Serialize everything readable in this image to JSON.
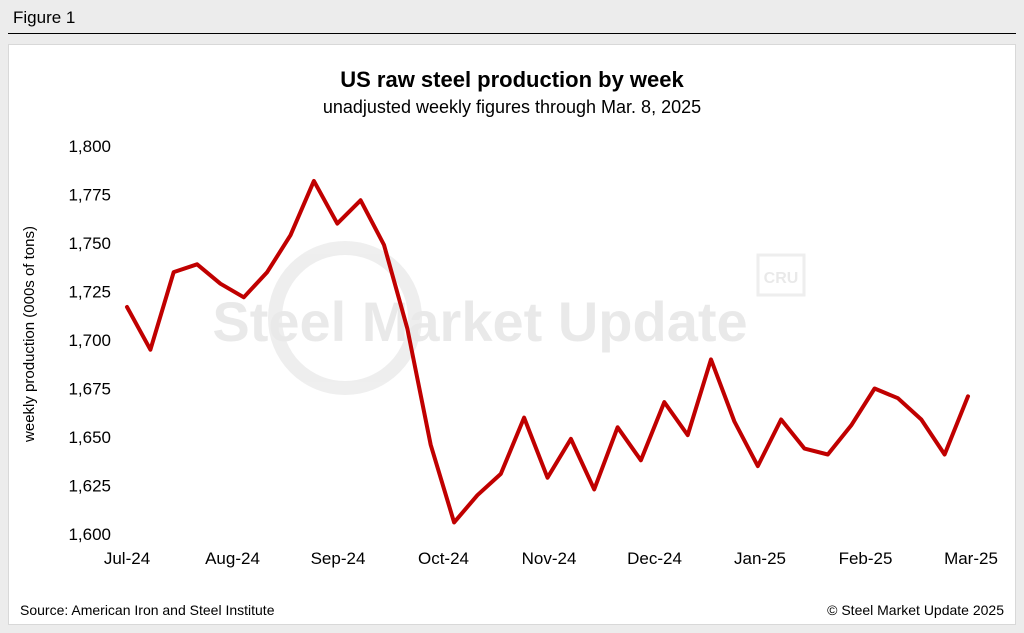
{
  "figure_label": "Figure 1",
  "footer": {
    "source": "Source: American Iron and Steel Institute",
    "copyright": "© Steel Market Update 2025"
  },
  "watermark": {
    "brand": "Steel Market Update",
    "badge": "CRU"
  },
  "chart_data": {
    "type": "line",
    "title": "US raw steel production by week",
    "subtitle": "unadjusted weekly figures through Mar. 8, 2025",
    "xlabel": "",
    "ylabel": "weekly production (000s of tons)",
    "ylim": [
      1600,
      1800
    ],
    "yticks": [
      1600,
      1625,
      1650,
      1675,
      1700,
      1725,
      1750,
      1775,
      1800
    ],
    "ytick_labels": [
      "1,600",
      "1,625",
      "1,650",
      "1,675",
      "1,700",
      "1,725",
      "1,750",
      "1,775",
      "1,800"
    ],
    "xtick_labels": [
      "Jul-24",
      "Aug-24",
      "Sep-24",
      "Oct-24",
      "Nov-24",
      "Dec-24",
      "Jan-25",
      "Feb-25",
      "Mar-25"
    ],
    "grid": false,
    "line_color": "#c00000",
    "series": [
      {
        "values": [
          1717,
          1695,
          1735,
          1739,
          1729,
          1722,
          1735,
          1754,
          1782,
          1760,
          1772,
          1749,
          1706,
          1646,
          1606,
          1620,
          1631,
          1660,
          1629,
          1649,
          1623,
          1655,
          1638,
          1668,
          1651,
          1690,
          1658,
          1635,
          1659,
          1644,
          1641,
          1656,
          1675,
          1670,
          1659,
          1641,
          1671
        ]
      }
    ]
  }
}
